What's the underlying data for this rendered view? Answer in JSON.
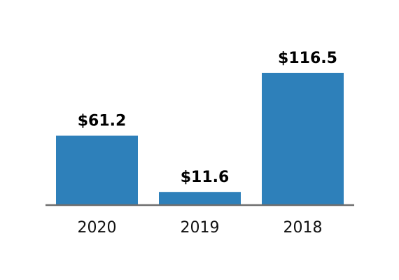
{
  "chart_data": {
    "type": "bar",
    "categories": [
      "2020",
      "2019",
      "2018"
    ],
    "values": [
      61.2,
      11.6,
      116.5
    ],
    "data_labels": [
      "$61.2",
      "$11.6",
      "$116.5"
    ],
    "title": "",
    "xlabel": "",
    "ylabel": "",
    "ylim": [
      0,
      116.5
    ],
    "grid": false,
    "legend": "none",
    "bar_color": "#2e80ba",
    "axis_color": "#6e6e6e"
  }
}
